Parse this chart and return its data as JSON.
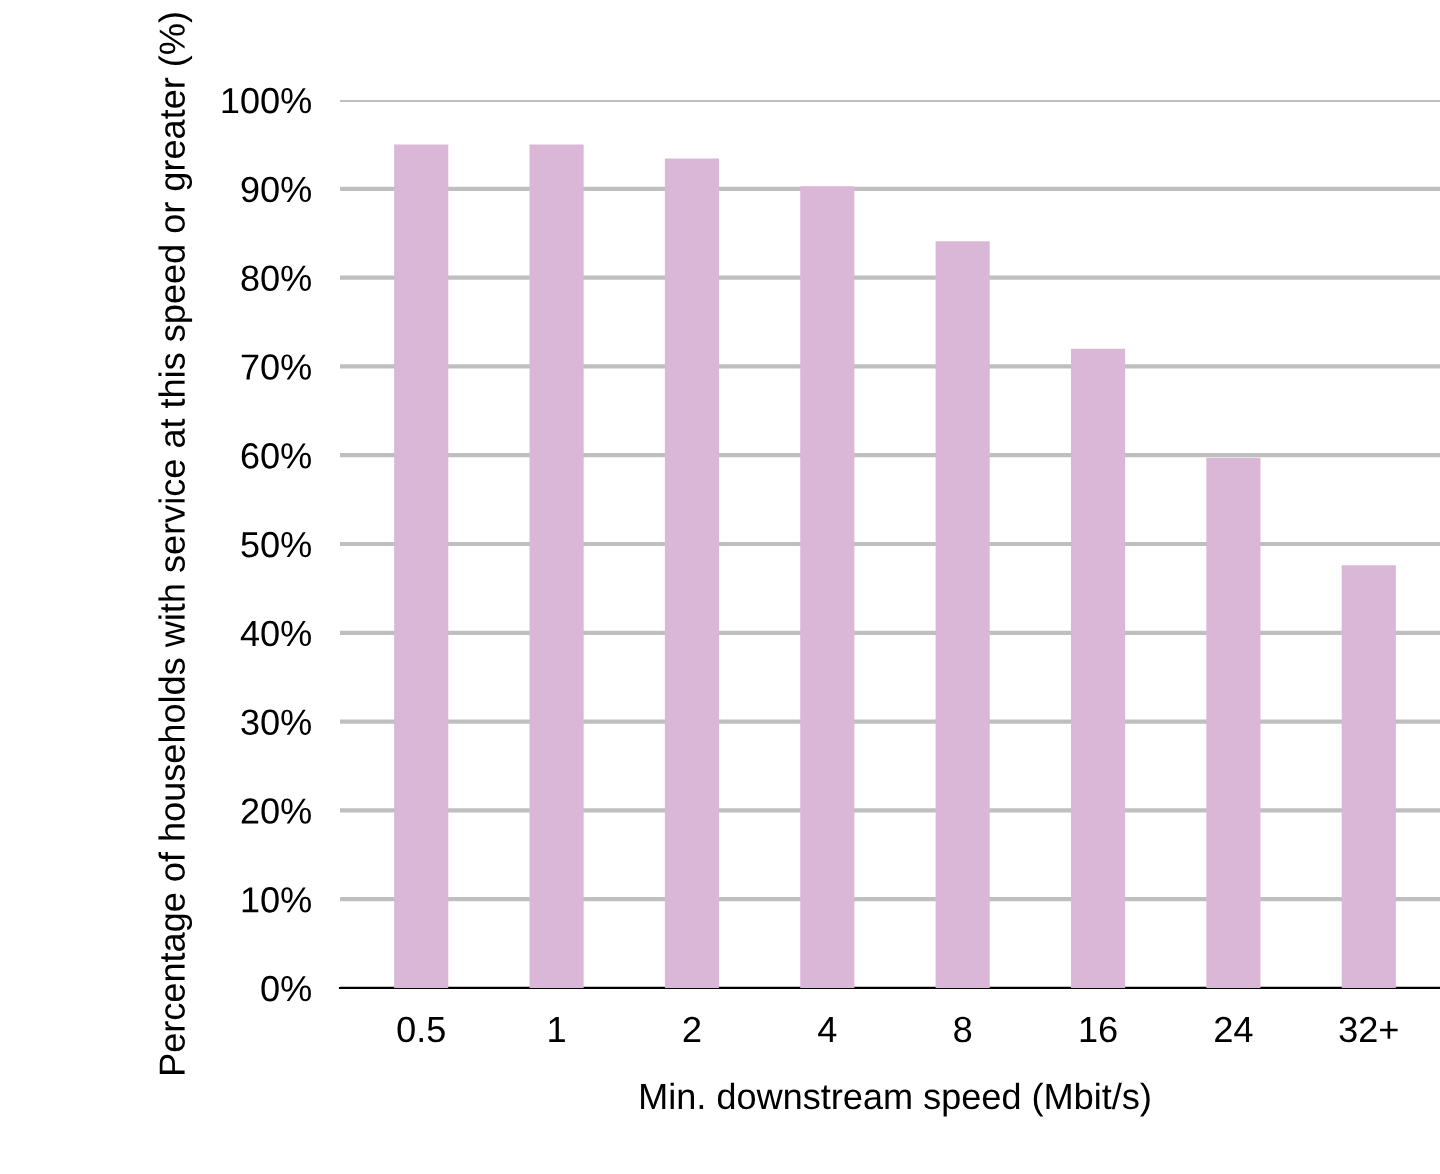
{
  "chart_data": {
    "type": "bar",
    "xlabel": "Min. downstream speed (Mbit/s)",
    "ylabel": "Percentage of households with service at this speed or greater (%)",
    "categories": [
      "0.5",
      "1",
      "2",
      "4",
      "8",
      "16",
      "24",
      "32+"
    ],
    "values": [
      95.0,
      95.0,
      93.4,
      90.3,
      84.1,
      72.0,
      59.7,
      47.6
    ],
    "color": "#dbb7d7",
    "ylim": [
      0,
      100
    ],
    "yticks": [
      {
        "value": 0,
        "label": "0%"
      },
      {
        "value": 10,
        "label": "10%"
      },
      {
        "value": 20,
        "label": "20%"
      },
      {
        "value": 30,
        "label": "30%"
      },
      {
        "value": 40,
        "label": "40%"
      },
      {
        "value": 50,
        "label": "50%"
      },
      {
        "value": 60,
        "label": "60%"
      },
      {
        "value": 70,
        "label": "70%"
      },
      {
        "value": 80,
        "label": "80%"
      },
      {
        "value": 90,
        "label": "90%"
      },
      {
        "value": 100,
        "label": "100%"
      }
    ],
    "grid": "y",
    "legend": false
  }
}
